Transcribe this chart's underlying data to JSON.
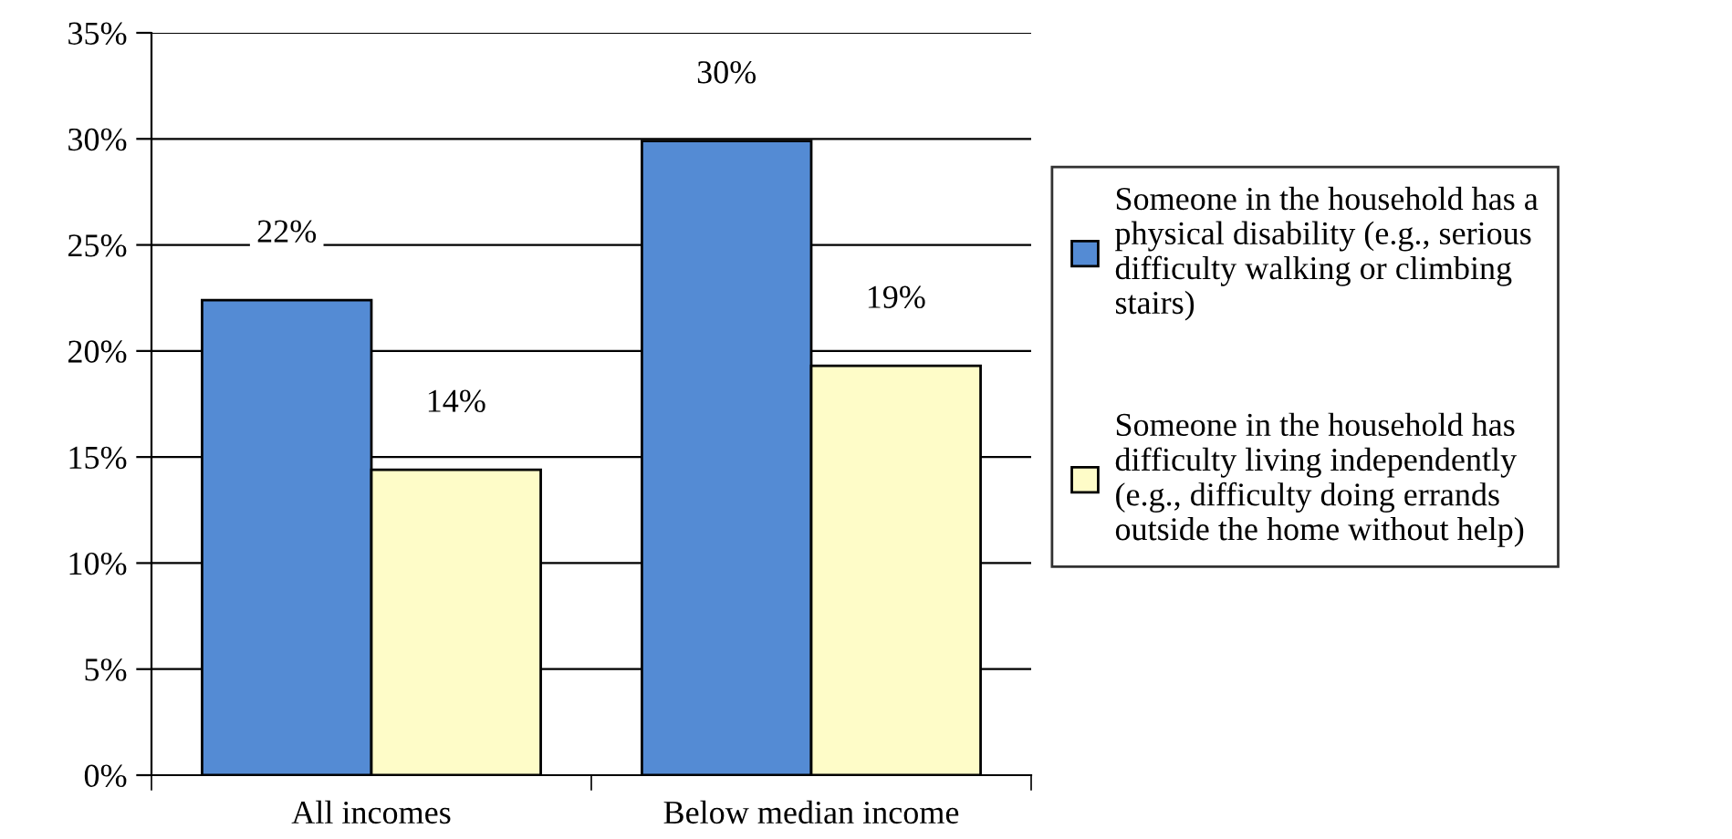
{
  "chart_data": {
    "type": "bar",
    "categories": [
      "All incomes",
      "Below median income"
    ],
    "series": [
      {
        "name": "Someone in the household has a physical disability (e.g., serious difficulty walking or climbing stairs)",
        "color": "#548bd4",
        "values": [
          22.4,
          29.9
        ],
        "value_labels": [
          "22%",
          "30%"
        ]
      },
      {
        "name": "Someone in the household has difficulty living independently (e.g., difficulty doing errands outside the home without help)",
        "color": "#fefcc8",
        "values": [
          14.4,
          19.3
        ],
        "value_labels": [
          "14%",
          "19%"
        ]
      }
    ],
    "ylim": [
      0,
      35
    ],
    "yticks": [
      {
        "value": 0,
        "label": "0%"
      },
      {
        "value": 5,
        "label": "5%"
      },
      {
        "value": 10,
        "label": "10%"
      },
      {
        "value": 15,
        "label": "15%"
      },
      {
        "value": 20,
        "label": "20%"
      },
      {
        "value": 25,
        "label": "25%"
      },
      {
        "value": 30,
        "label": "30%"
      },
      {
        "value": 35,
        "label": "35%"
      }
    ],
    "grid": "y",
    "legend": "right"
  }
}
